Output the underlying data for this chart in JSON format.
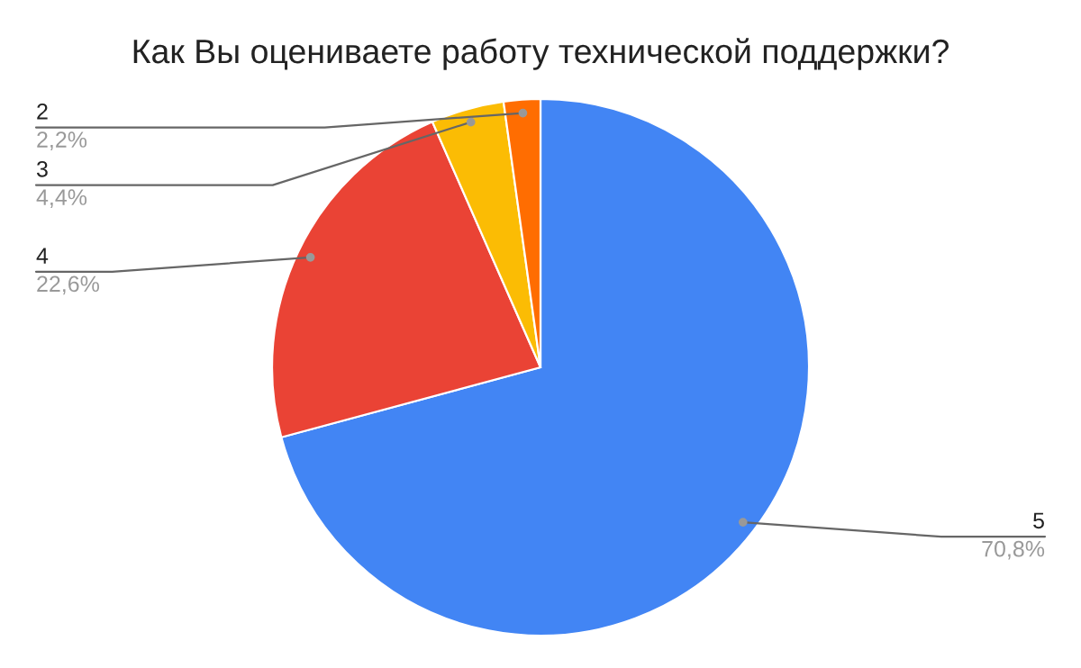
{
  "chart_data": {
    "type": "pie",
    "title": "Как Вы оцениваете работу технической поддержки?",
    "categories": [
      "5",
      "4",
      "3",
      "2"
    ],
    "values": [
      70.8,
      22.6,
      4.4,
      2.2
    ],
    "value_labels": [
      "70,8%",
      "22,6%",
      "4,4%",
      "2,2%"
    ],
    "colors": [
      "#4285f4",
      "#ea4335",
      "#fbbc04",
      "#ff6d01"
    ]
  }
}
